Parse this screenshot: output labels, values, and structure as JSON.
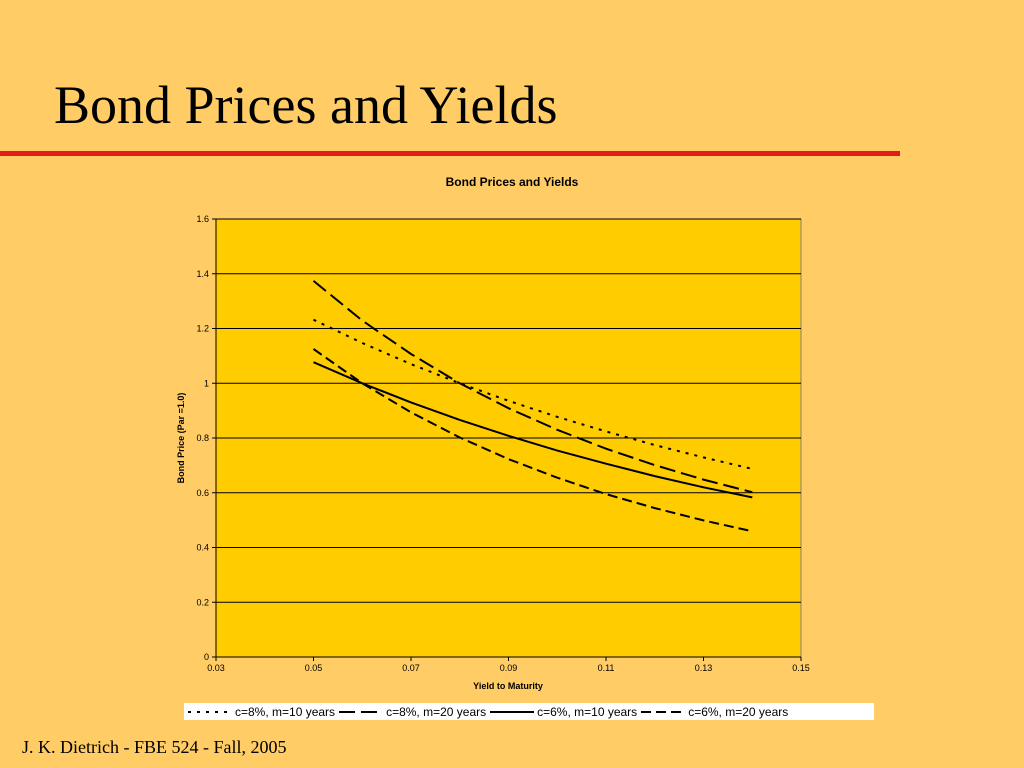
{
  "slide": {
    "title": "Bond Prices and Yields",
    "footer": "J. K. Dietrich - FBE 524 - Fall, 2005",
    "rule_color": "#E41B17",
    "background_color": "#FFCC66"
  },
  "chart_data": {
    "type": "line",
    "title": "Bond Prices and Yields",
    "xlabel": "Yield to Maturity",
    "ylabel": "Bond Price (Par =1.0)",
    "xlim": [
      0.03,
      0.15
    ],
    "ylim": [
      0,
      1.6
    ],
    "x_ticks": [
      "0.03",
      "0.05",
      "0.07",
      "0.09",
      "0.11",
      "0.13",
      "0.15"
    ],
    "y_ticks": [
      "0",
      "0.2",
      "0.4",
      "0.6",
      "0.8",
      "1",
      "1.2",
      "1.4",
      "1.6"
    ],
    "grid": "horizontal",
    "plot_background": "#FFCC00",
    "legend_position": "bottom",
    "x": [
      0.05,
      0.06,
      0.07,
      0.08,
      0.09,
      0.1,
      0.11,
      0.12,
      0.13,
      0.14
    ],
    "series": [
      {
        "name": "c=8%, m=10 years",
        "style": "short-dash",
        "values": [
          1.232,
          1.147,
          1.07,
          1.0,
          0.936,
          0.877,
          0.824,
          0.774,
          0.729,
          0.687
        ]
      },
      {
        "name": "c=8%, m=20 years",
        "style": "long-dash",
        "values": [
          1.374,
          1.229,
          1.107,
          1.0,
          0.909,
          0.83,
          0.761,
          0.701,
          0.648,
          0.602
        ]
      },
      {
        "name": "c=6%, m=10 years",
        "style": "solid",
        "values": [
          1.077,
          1.0,
          0.93,
          0.866,
          0.808,
          0.754,
          0.706,
          0.661,
          0.62,
          0.583
        ]
      },
      {
        "name": "c=6%, m=20 years",
        "style": "dash",
        "values": [
          1.125,
          1.0,
          0.894,
          0.802,
          0.723,
          0.655,
          0.595,
          0.544,
          0.499,
          0.459
        ]
      }
    ]
  }
}
